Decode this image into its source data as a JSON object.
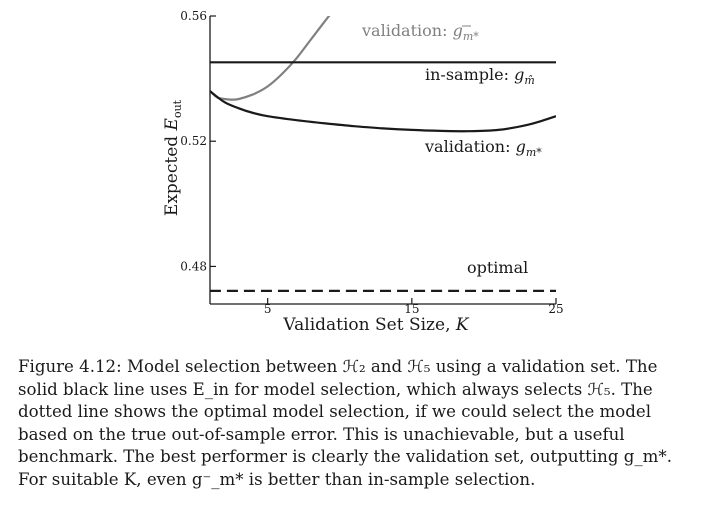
{
  "chart_data": {
    "type": "line",
    "xlabel": "Validation Set Size, K",
    "ylabel": "Expected E_out",
    "xlim": [
      1,
      25
    ],
    "ylim": [
      0.468,
      0.56
    ],
    "x_ticks": [
      5,
      15,
      25
    ],
    "y_ticks": [
      0.48,
      0.52,
      0.56
    ],
    "x_tick_labels": [
      "5",
      "15",
      "25"
    ],
    "y_tick_labels": [
      "0.48",
      "0.52",
      "0.56"
    ],
    "grid": false,
    "legend": "none (series labeled inline)",
    "series": [
      {
        "name": "validation: g⁻_m*",
        "style": "solid",
        "color": "#808080",
        "x": [
          1,
          1.5,
          2,
          2.5,
          3,
          4,
          5,
          6,
          7,
          8,
          9,
          10,
          11
        ],
        "y": [
          0.536,
          0.534,
          0.5335,
          0.5333,
          0.5335,
          0.535,
          0.5375,
          0.5415,
          0.5465,
          0.5525,
          0.5585,
          0.5645,
          0.5715
        ]
      },
      {
        "name": "in-sample: g_m̂",
        "style": "solid",
        "color": "#1a1a1a",
        "x": [
          1,
          25
        ],
        "y": [
          0.5452,
          0.5452
        ]
      },
      {
        "name": "validation: g_m*",
        "style": "solid",
        "color": "#1a1a1a",
        "x": [
          1,
          2,
          3,
          4,
          5,
          7,
          9,
          11,
          13,
          15,
          17,
          19,
          21,
          23,
          24,
          25
        ],
        "y": [
          0.536,
          0.5325,
          0.5305,
          0.529,
          0.528,
          0.5267,
          0.5257,
          0.5248,
          0.5241,
          0.5236,
          0.5233,
          0.5232,
          0.5236,
          0.5252,
          0.5265,
          0.528
        ]
      },
      {
        "name": "optimal",
        "style": "dashed",
        "color": "#1a1a1a",
        "x": [
          1,
          25
        ],
        "y": [
          0.4722,
          0.4722
        ]
      }
    ]
  },
  "labels": {
    "validation_gminus": "validation: ",
    "in_sample": "in-sample: ",
    "validation_g": "validation: ",
    "optimal": "optimal"
  },
  "caption": {
    "line1": "Figure 4.12: Model selection between ℋ₂ and ℋ₅ using a validation set. The",
    "line2": "solid black line uses E_in for model selection, which always selects ℋ₅. The",
    "line3": "dotted line shows the optimal model selection, if we could select the model",
    "line4": "based on the true out-of-sample error.  This is unachievable, but a useful",
    "line5": "benchmark. The best performer is clearly the validation set, outputting g_m*.",
    "line6": "For suitable K, even g⁻_m* is better than in-sample selection."
  }
}
